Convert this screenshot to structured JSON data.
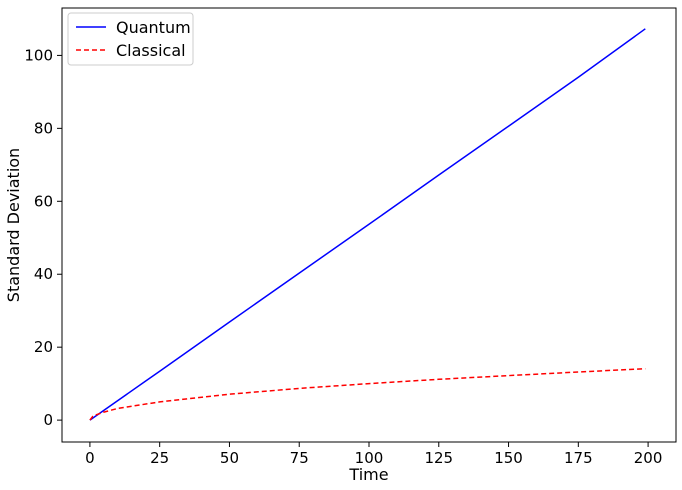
{
  "chart_data": {
    "type": "line",
    "xlabel": "Time",
    "ylabel": "Standard Deviation",
    "xlim": [
      -10,
      210
    ],
    "ylim": [
      -6,
      113
    ],
    "x_ticks": [
      0,
      25,
      50,
      75,
      100,
      125,
      150,
      175,
      200
    ],
    "y_ticks": [
      0,
      20,
      40,
      60,
      80,
      100
    ],
    "grid": false,
    "legend_position": "top-left",
    "series": [
      {
        "name": "Quantum",
        "color": "#0000ff",
        "style": "solid",
        "x": [
          0,
          25,
          50,
          75,
          100,
          125,
          150,
          175,
          199
        ],
        "y": [
          0,
          13.4,
          26.9,
          40.3,
          53.7,
          67.2,
          80.6,
          94.0,
          107.3
        ]
      },
      {
        "name": "Classical",
        "color": "#ff0000",
        "style": "dashed",
        "x": [
          0,
          1,
          2,
          5,
          10,
          25,
          50,
          75,
          100,
          125,
          150,
          175,
          199
        ],
        "y": [
          0,
          1.0,
          1.4,
          2.2,
          3.2,
          5.0,
          7.1,
          8.7,
          10.0,
          11.2,
          12.2,
          13.2,
          14.1
        ]
      }
    ]
  }
}
